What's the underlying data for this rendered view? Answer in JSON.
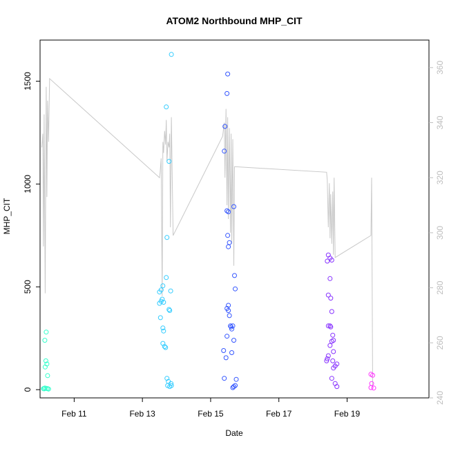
{
  "chart_data": {
    "type": "scatter",
    "title": "ATOM2 Northbound MHP_CIT",
    "xlabel": "Date",
    "ylabel": "MHP_CIT",
    "ylabel_right": "",
    "xlim_days": [
      10.0,
      21.4
    ],
    "ylim": [
      -40,
      1700
    ],
    "ylim_right": [
      240,
      370
    ],
    "x_ticks": [
      {
        "label": "Feb 11",
        "day": 11
      },
      {
        "label": "Feb 13",
        "day": 13
      },
      {
        "label": "Feb 15",
        "day": 15
      },
      {
        "label": "Feb 17",
        "day": 17
      },
      {
        "label": "Feb 19",
        "day": 19
      }
    ],
    "y_ticks": [
      0,
      500,
      1000,
      1500
    ],
    "y_ticks_right": [
      240,
      260,
      280,
      300,
      320,
      340,
      360
    ],
    "point_colors": [
      "#33ffcc",
      "#33ccff",
      "#3355ff",
      "#8833ff",
      "#ff33ff"
    ],
    "line_color": "#c8c8c8",
    "right_axis_color": "#bdbdbd",
    "series": [
      {
        "color": "#33ffcc",
        "points": [
          [
            10.18,
            280
          ],
          [
            10.14,
            240
          ],
          [
            10.2,
            125
          ],
          [
            10.22,
            68
          ],
          [
            10.17,
            140
          ],
          [
            10.15,
            110
          ],
          [
            10.1,
            5
          ],
          [
            10.14,
            8
          ],
          [
            10.18,
            6
          ],
          [
            10.22,
            5
          ],
          [
            10.25,
            3
          ],
          [
            10.12,
            4
          ]
        ]
      },
      {
        "color": "#33ccff",
        "points": [
          [
            13.85,
            1630
          ],
          [
            13.7,
            1375
          ],
          [
            13.78,
            1110
          ],
          [
            13.72,
            740
          ],
          [
            13.7,
            545
          ],
          [
            13.6,
            505
          ],
          [
            13.55,
            485
          ],
          [
            13.5,
            475
          ],
          [
            13.58,
            440
          ],
          [
            13.55,
            430
          ],
          [
            13.62,
            425
          ],
          [
            13.5,
            420
          ],
          [
            13.83,
            480
          ],
          [
            13.78,
            390
          ],
          [
            13.8,
            385
          ],
          [
            13.53,
            350
          ],
          [
            13.6,
            300
          ],
          [
            13.62,
            285
          ],
          [
            13.6,
            225
          ],
          [
            13.65,
            210
          ],
          [
            13.68,
            205
          ],
          [
            13.72,
            55
          ],
          [
            13.76,
            40
          ],
          [
            13.84,
            30
          ],
          [
            13.74,
            20
          ],
          [
            13.8,
            15
          ],
          [
            13.85,
            20
          ]
        ]
      },
      {
        "color": "#3355ff",
        "points": [
          [
            15.5,
            1535
          ],
          [
            15.48,
            1440
          ],
          [
            15.42,
            1280
          ],
          [
            15.4,
            1160
          ],
          [
            15.68,
            890
          ],
          [
            15.48,
            870
          ],
          [
            15.52,
            865
          ],
          [
            15.5,
            750
          ],
          [
            15.55,
            715
          ],
          [
            15.52,
            695
          ],
          [
            15.7,
            555
          ],
          [
            15.72,
            490
          ],
          [
            15.52,
            410
          ],
          [
            15.48,
            395
          ],
          [
            15.52,
            385
          ],
          [
            15.55,
            360
          ],
          [
            15.58,
            310
          ],
          [
            15.65,
            310
          ],
          [
            15.6,
            305
          ],
          [
            15.62,
            295
          ],
          [
            15.48,
            260
          ],
          [
            15.68,
            240
          ],
          [
            15.38,
            190
          ],
          [
            15.62,
            180
          ],
          [
            15.45,
            155
          ],
          [
            15.4,
            55
          ],
          [
            15.75,
            50
          ],
          [
            15.72,
            20
          ],
          [
            15.68,
            15
          ],
          [
            15.65,
            10
          ]
        ]
      },
      {
        "color": "#8833ff",
        "points": [
          [
            18.45,
            655
          ],
          [
            18.5,
            640
          ],
          [
            18.55,
            630
          ],
          [
            18.42,
            625
          ],
          [
            18.5,
            540
          ],
          [
            18.45,
            460
          ],
          [
            18.52,
            445
          ],
          [
            18.55,
            380
          ],
          [
            18.45,
            310
          ],
          [
            18.5,
            310
          ],
          [
            18.52,
            305
          ],
          [
            18.58,
            265
          ],
          [
            18.6,
            240
          ],
          [
            18.55,
            235
          ],
          [
            18.5,
            215
          ],
          [
            18.6,
            185
          ],
          [
            18.45,
            165
          ],
          [
            18.42,
            150
          ],
          [
            18.4,
            140
          ],
          [
            18.58,
            140
          ],
          [
            18.7,
            125
          ],
          [
            18.65,
            115
          ],
          [
            18.6,
            105
          ],
          [
            18.55,
            55
          ],
          [
            18.65,
            30
          ],
          [
            18.7,
            15
          ]
        ]
      },
      {
        "color": "#ff33ff",
        "points": [
          [
            19.7,
            75
          ],
          [
            19.75,
            70
          ],
          [
            19.72,
            30
          ],
          [
            19.7,
            10
          ],
          [
            19.78,
            8
          ]
        ]
      }
    ],
    "line_right_axis": [
      [
        10.05,
        331
      ],
      [
        10.08,
        336
      ],
      [
        10.1,
        295
      ],
      [
        10.12,
        343
      ],
      [
        10.15,
        278
      ],
      [
        10.18,
        353
      ],
      [
        10.2,
        313
      ],
      [
        10.22,
        348
      ],
      [
        10.25,
        333
      ],
      [
        10.28,
        356
      ],
      [
        13.5,
        320
      ],
      [
        13.52,
        322
      ],
      [
        13.55,
        327
      ],
      [
        13.58,
        277
      ],
      [
        13.6,
        333
      ],
      [
        13.62,
        329
      ],
      [
        13.65,
        337
      ],
      [
        13.68,
        332
      ],
      [
        13.7,
        341
      ],
      [
        13.72,
        326
      ],
      [
        13.75,
        333
      ],
      [
        13.78,
        331
      ],
      [
        13.8,
        336
      ],
      [
        13.82,
        302
      ],
      [
        13.85,
        342
      ],
      [
        13.9,
        299
      ],
      [
        15.35,
        335
      ],
      [
        15.4,
        340
      ],
      [
        15.42,
        320
      ],
      [
        15.45,
        345
      ],
      [
        15.48,
        310
      ],
      [
        15.5,
        342
      ],
      [
        15.52,
        305
      ],
      [
        15.55,
        338
      ],
      [
        15.58,
        300
      ],
      [
        15.6,
        336
      ],
      [
        15.62,
        296
      ],
      [
        15.65,
        334
      ],
      [
        15.68,
        288
      ],
      [
        15.7,
        324
      ],
      [
        18.4,
        322
      ],
      [
        18.42,
        319
      ],
      [
        18.45,
        302
      ],
      [
        18.48,
        318
      ],
      [
        18.5,
        298
      ],
      [
        18.52,
        314
      ],
      [
        18.55,
        296
      ],
      [
        18.58,
        315
      ],
      [
        18.6,
        292
      ],
      [
        18.62,
        320
      ],
      [
        18.65,
        291
      ],
      [
        19.7,
        299
      ],
      [
        19.72,
        320
      ],
      [
        19.75,
        244
      ]
    ]
  }
}
